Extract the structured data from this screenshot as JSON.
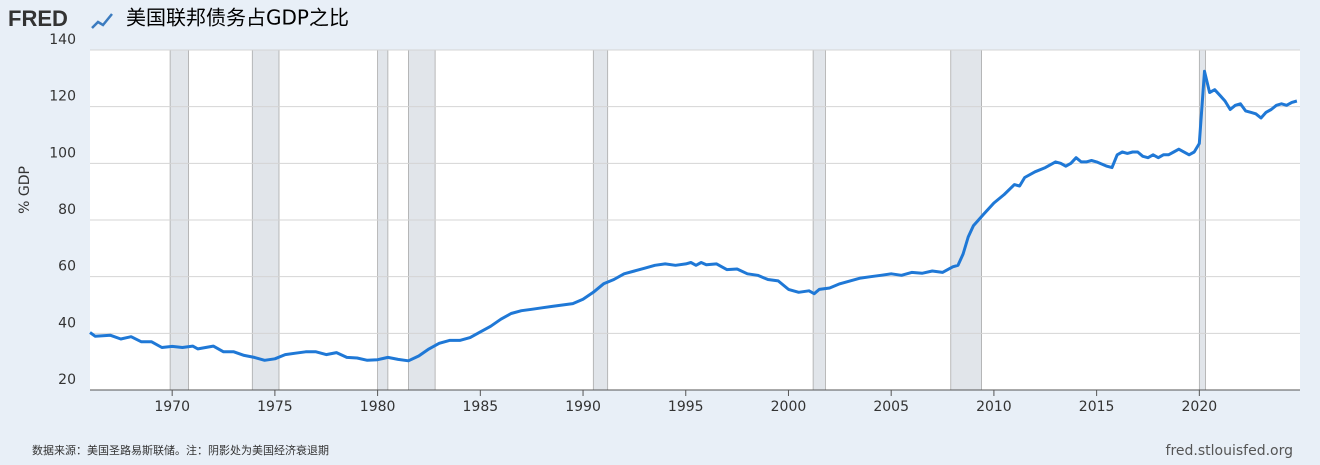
{
  "chart_data": {
    "type": "line",
    "logo": "FRED",
    "title": "美国联邦债务占GDP之比",
    "y_label": "% GDP",
    "source_note": "数据来源：美国圣路易斯联储。注：阴影处为美国经济衰退期",
    "site": "fred.stlouisfed.org",
    "color": "#1f78d6",
    "grid": true,
    "xlim": [
      1966,
      2024.9
    ],
    "ylim": [
      20,
      140
    ],
    "xticks": [
      1970,
      1975,
      1980,
      1985,
      1990,
      1995,
      2000,
      2005,
      2010,
      2015,
      2020
    ],
    "yticks": [
      20,
      40,
      60,
      80,
      100,
      120,
      140
    ],
    "recessions": [
      [
        1969.9,
        1970.8
      ],
      [
        1973.9,
        1975.2
      ],
      [
        1980.0,
        1980.5
      ],
      [
        1981.5,
        1982.8
      ],
      [
        1990.5,
        1991.2
      ],
      [
        2001.2,
        2001.8
      ],
      [
        2007.9,
        2009.4
      ],
      [
        2020.0,
        2020.3
      ]
    ],
    "x": [
      1966,
      1966.25,
      1967,
      1967.5,
      1968,
      1968.5,
      1969,
      1969.5,
      1970,
      1970.5,
      1971,
      1971.25,
      1972,
      1972.5,
      1973,
      1973.5,
      1974,
      1974.5,
      1975,
      1975.5,
      1976,
      1976.5,
      1977,
      1977.5,
      1978,
      1978.5,
      1979,
      1979.5,
      1980,
      1980.5,
      1981,
      1981.5,
      1982,
      1982.5,
      1983,
      1983.5,
      1984,
      1984.5,
      1985,
      1985.5,
      1986,
      1986.5,
      1987,
      1987.5,
      1988,
      1988.5,
      1989,
      1989.5,
      1990,
      1990.5,
      1991,
      1991.5,
      1992,
      1992.5,
      1993,
      1993.5,
      1994,
      1994.5,
      1995,
      1995.25,
      1995.5,
      1995.75,
      1996,
      1996.5,
      1997,
      1997.5,
      1998,
      1998.5,
      1999,
      1999.5,
      2000,
      2000.5,
      2001,
      2001.25,
      2001.5,
      2002,
      2002.5,
      2003,
      2003.5,
      2004,
      2004.5,
      2005,
      2005.5,
      2006,
      2006.5,
      2007,
      2007.5,
      2008,
      2008.25,
      2008.5,
      2008.75,
      2009,
      2009.5,
      2010,
      2010.5,
      2011,
      2011.25,
      2011.5,
      2012,
      2012.5,
      2013,
      2013.25,
      2013.5,
      2013.75,
      2014,
      2014.25,
      2014.5,
      2014.75,
      2015,
      2015.5,
      2015.75,
      2016,
      2016.25,
      2016.5,
      2016.75,
      2017,
      2017.25,
      2017.5,
      2017.75,
      2018,
      2018.25,
      2018.5,
      2018.75,
      2019,
      2019.5,
      2019.75,
      2020,
      2020.25,
      2020.5,
      2020.75,
      2021,
      2021.25,
      2021.5,
      2021.75,
      2022,
      2022.25,
      2022.5,
      2022.75,
      2023,
      2023.25,
      2023.5,
      2023.75,
      2024,
      2024.25,
      2024.5,
      2024.75
    ],
    "values": [
      40.3,
      39,
      39.3,
      38,
      38.8,
      37,
      37,
      35,
      35.4,
      35,
      35.5,
      34.5,
      35.5,
      33.5,
      33.5,
      32.2,
      31.5,
      30.5,
      31,
      32.5,
      33,
      33.5,
      33.5,
      32.5,
      33.2,
      31.5,
      31.3,
      30.5,
      30.7,
      31.5,
      30.8,
      30.3,
      32,
      34.5,
      36.5,
      37.5,
      37.5,
      38.5,
      40.5,
      42.5,
      45,
      47,
      48,
      48.5,
      49,
      49.5,
      50,
      50.5,
      52,
      54.5,
      57.5,
      59,
      61,
      62,
      63,
      64,
      64.5,
      64,
      64.5,
      65,
      64,
      65,
      64.2,
      64.5,
      62.5,
      62.7,
      61,
      60.5,
      59,
      58.5,
      55.5,
      54.5,
      55,
      54,
      55.5,
      56,
      57.5,
      58.5,
      59.5,
      60,
      60.5,
      61,
      60.5,
      61.5,
      61.2,
      62,
      61.5,
      63.5,
      64,
      68,
      74,
      78,
      82,
      86,
      89,
      92.5,
      92,
      95,
      97,
      98.5,
      100.5,
      100,
      99,
      100,
      102,
      100.5,
      100.5,
      101,
      100.5,
      99,
      98.5,
      103,
      104,
      103.5,
      104,
      104,
      102.5,
      102,
      103,
      102,
      103,
      103,
      104,
      105,
      103,
      104,
      107,
      132.5,
      125,
      126,
      124,
      122,
      119,
      120.5,
      121,
      118.5,
      118,
      117.5,
      116,
      118,
      119,
      120.5,
      121,
      120.5,
      121.5,
      122
    ]
  }
}
